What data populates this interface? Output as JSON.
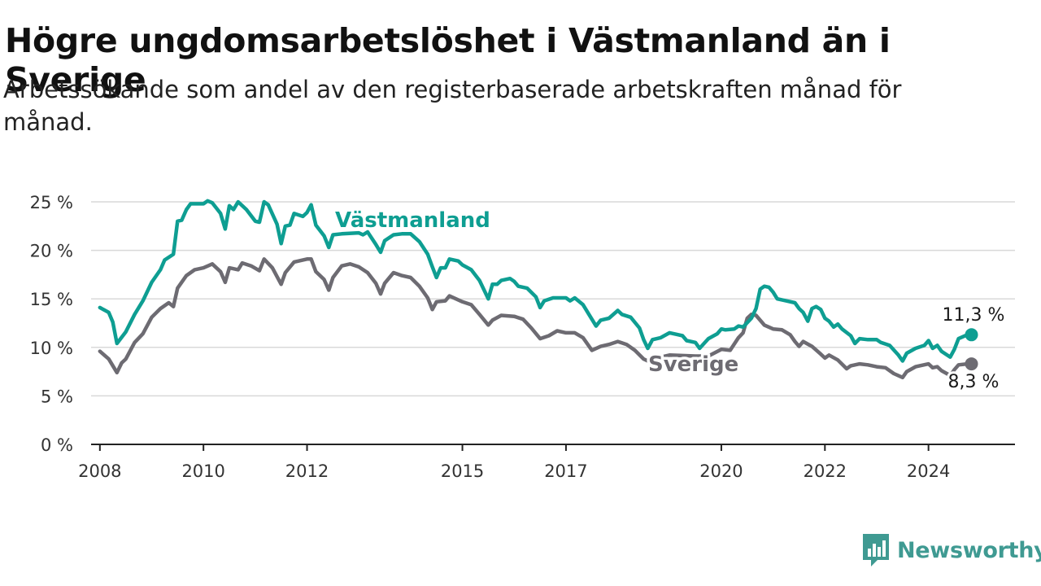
{
  "title": "Högre ungdomsarbetslöshet i Västmanland än i Sverige",
  "subtitle": "Arbetssökande som andel av den registerbaserade arbetskraften månad för månad.",
  "brand": {
    "name": "Newsworthy",
    "icon": "newsworthy-logo-icon",
    "color": "#3f9a92"
  },
  "chart_data": {
    "type": "line",
    "title": "",
    "xlabel": "",
    "ylabel": "",
    "ylim": [
      0,
      25
    ],
    "xlim": [
      2007.83,
      2025.67
    ],
    "grid": true,
    "y_ticks": [
      0,
      5,
      10,
      15,
      20,
      25
    ],
    "y_tick_labels": [
      "0 %",
      "5 %",
      "10 %",
      "15 %",
      "20 %",
      "25 %"
    ],
    "x_ticks": [
      2008,
      2010,
      2012,
      2015,
      2017,
      2020,
      2022,
      2024
    ],
    "x_tick_labels": [
      "2008",
      "2010",
      "2012",
      "2015",
      "2017",
      "2020",
      "2022",
      "2024"
    ],
    "series": [
      {
        "name": "Västmanland",
        "color": "#0e9e92",
        "end_label": "11,3 %",
        "points": [
          [
            2008.0,
            14.1
          ],
          [
            2008.17,
            13.6
          ],
          [
            2008.25,
            12.6
          ],
          [
            2008.33,
            10.4
          ],
          [
            2008.5,
            11.6
          ],
          [
            2008.67,
            13.4
          ],
          [
            2008.83,
            14.8
          ],
          [
            2009.0,
            16.7
          ],
          [
            2009.17,
            18.0
          ],
          [
            2009.25,
            19.0
          ],
          [
            2009.42,
            19.6
          ],
          [
            2009.5,
            23.0
          ],
          [
            2009.58,
            23.1
          ],
          [
            2009.67,
            24.2
          ],
          [
            2009.75,
            24.8
          ],
          [
            2010.0,
            24.8
          ],
          [
            2010.08,
            25.1
          ],
          [
            2010.17,
            24.9
          ],
          [
            2010.33,
            23.8
          ],
          [
            2010.42,
            22.2
          ],
          [
            2010.5,
            24.6
          ],
          [
            2010.58,
            24.2
          ],
          [
            2010.67,
            25.0
          ],
          [
            2010.83,
            24.2
          ],
          [
            2011.0,
            23.0
          ],
          [
            2011.08,
            22.9
          ],
          [
            2011.17,
            25.0
          ],
          [
            2011.25,
            24.7
          ],
          [
            2011.42,
            22.7
          ],
          [
            2011.5,
            20.7
          ],
          [
            2011.58,
            22.5
          ],
          [
            2011.67,
            22.6
          ],
          [
            2011.75,
            23.8
          ],
          [
            2011.92,
            23.5
          ],
          [
            2012.0,
            23.9
          ],
          [
            2012.08,
            24.7
          ],
          [
            2012.17,
            22.6
          ],
          [
            2012.33,
            21.5
          ],
          [
            2012.42,
            20.3
          ],
          [
            2012.5,
            21.6
          ],
          [
            2012.67,
            21.7
          ],
          [
            2013.0,
            21.8
          ],
          [
            2013.08,
            21.6
          ],
          [
            2013.17,
            21.9
          ],
          [
            2013.33,
            20.6
          ],
          [
            2013.42,
            19.8
          ],
          [
            2013.5,
            21.0
          ],
          [
            2013.67,
            21.6
          ],
          [
            2013.83,
            21.7
          ],
          [
            2014.0,
            21.7
          ],
          [
            2014.17,
            20.9
          ],
          [
            2014.33,
            19.6
          ],
          [
            2014.42,
            18.3
          ],
          [
            2014.5,
            17.2
          ],
          [
            2014.58,
            18.2
          ],
          [
            2014.67,
            18.2
          ],
          [
            2014.75,
            19.1
          ],
          [
            2014.92,
            18.9
          ],
          [
            2015.0,
            18.5
          ],
          [
            2015.17,
            18.0
          ],
          [
            2015.33,
            16.9
          ],
          [
            2015.5,
            15.0
          ],
          [
            2015.58,
            16.5
          ],
          [
            2015.67,
            16.5
          ],
          [
            2015.75,
            16.9
          ],
          [
            2015.92,
            17.1
          ],
          [
            2016.0,
            16.8
          ],
          [
            2016.08,
            16.3
          ],
          [
            2016.25,
            16.1
          ],
          [
            2016.42,
            15.2
          ],
          [
            2016.5,
            14.1
          ],
          [
            2016.58,
            14.8
          ],
          [
            2016.75,
            15.1
          ],
          [
            2017.0,
            15.1
          ],
          [
            2017.08,
            14.8
          ],
          [
            2017.17,
            15.1
          ],
          [
            2017.33,
            14.4
          ],
          [
            2017.42,
            13.6
          ],
          [
            2017.58,
            12.2
          ],
          [
            2017.67,
            12.8
          ],
          [
            2017.83,
            13.0
          ],
          [
            2018.0,
            13.8
          ],
          [
            2018.08,
            13.4
          ],
          [
            2018.25,
            13.1
          ],
          [
            2018.42,
            12.0
          ],
          [
            2018.5,
            10.8
          ],
          [
            2018.58,
            9.9
          ],
          [
            2018.67,
            10.8
          ],
          [
            2018.83,
            11.0
          ],
          [
            2019.0,
            11.5
          ],
          [
            2019.17,
            11.3
          ],
          [
            2019.25,
            11.2
          ],
          [
            2019.33,
            10.7
          ],
          [
            2019.5,
            10.5
          ],
          [
            2019.58,
            9.9
          ],
          [
            2019.75,
            10.9
          ],
          [
            2019.92,
            11.4
          ],
          [
            2020.0,
            11.9
          ],
          [
            2020.08,
            11.8
          ],
          [
            2020.25,
            11.9
          ],
          [
            2020.33,
            12.2
          ],
          [
            2020.42,
            12.1
          ],
          [
            2020.58,
            13.0
          ],
          [
            2020.67,
            14.0
          ],
          [
            2020.75,
            16.0
          ],
          [
            2020.83,
            16.3
          ],
          [
            2020.92,
            16.2
          ],
          [
            2021.0,
            15.7
          ],
          [
            2021.08,
            15.0
          ],
          [
            2021.25,
            14.8
          ],
          [
            2021.42,
            14.6
          ],
          [
            2021.5,
            14.0
          ],
          [
            2021.58,
            13.6
          ],
          [
            2021.67,
            12.7
          ],
          [
            2021.75,
            14.0
          ],
          [
            2021.83,
            14.2
          ],
          [
            2021.92,
            13.9
          ],
          [
            2022.0,
            13.0
          ],
          [
            2022.08,
            12.7
          ],
          [
            2022.17,
            12.1
          ],
          [
            2022.25,
            12.4
          ],
          [
            2022.33,
            11.9
          ],
          [
            2022.5,
            11.2
          ],
          [
            2022.58,
            10.4
          ],
          [
            2022.67,
            10.9
          ],
          [
            2022.83,
            10.8
          ],
          [
            2023.0,
            10.8
          ],
          [
            2023.08,
            10.5
          ],
          [
            2023.25,
            10.2
          ],
          [
            2023.42,
            9.2
          ],
          [
            2023.5,
            8.6
          ],
          [
            2023.58,
            9.4
          ],
          [
            2023.75,
            9.9
          ],
          [
            2023.92,
            10.2
          ],
          [
            2024.0,
            10.7
          ],
          [
            2024.08,
            9.9
          ],
          [
            2024.17,
            10.2
          ],
          [
            2024.25,
            9.6
          ],
          [
            2024.42,
            9.0
          ],
          [
            2024.5,
            9.8
          ],
          [
            2024.58,
            10.9
          ],
          [
            2024.75,
            11.3
          ],
          [
            2024.83,
            11.3
          ]
        ]
      },
      {
        "name": "Sverige",
        "color": "#6d6b72",
        "end_label": "8,3 %",
        "points": [
          [
            2008.0,
            9.6
          ],
          [
            2008.17,
            8.8
          ],
          [
            2008.33,
            7.4
          ],
          [
            2008.42,
            8.4
          ],
          [
            2008.5,
            8.8
          ],
          [
            2008.67,
            10.5
          ],
          [
            2008.83,
            11.4
          ],
          [
            2009.0,
            13.1
          ],
          [
            2009.17,
            14.0
          ],
          [
            2009.33,
            14.6
          ],
          [
            2009.42,
            14.2
          ],
          [
            2009.5,
            16.1
          ],
          [
            2009.67,
            17.4
          ],
          [
            2009.83,
            18.0
          ],
          [
            2010.0,
            18.2
          ],
          [
            2010.17,
            18.6
          ],
          [
            2010.33,
            17.8
          ],
          [
            2010.42,
            16.7
          ],
          [
            2010.5,
            18.2
          ],
          [
            2010.67,
            18.0
          ],
          [
            2010.75,
            18.7
          ],
          [
            2010.92,
            18.4
          ],
          [
            2011.08,
            17.9
          ],
          [
            2011.17,
            19.1
          ],
          [
            2011.33,
            18.2
          ],
          [
            2011.5,
            16.5
          ],
          [
            2011.58,
            17.7
          ],
          [
            2011.75,
            18.8
          ],
          [
            2012.0,
            19.1
          ],
          [
            2012.08,
            19.1
          ],
          [
            2012.17,
            17.8
          ],
          [
            2012.33,
            17.0
          ],
          [
            2012.42,
            15.9
          ],
          [
            2012.5,
            17.2
          ],
          [
            2012.67,
            18.4
          ],
          [
            2012.83,
            18.6
          ],
          [
            2013.0,
            18.3
          ],
          [
            2013.17,
            17.7
          ],
          [
            2013.33,
            16.6
          ],
          [
            2013.42,
            15.5
          ],
          [
            2013.5,
            16.6
          ],
          [
            2013.67,
            17.7
          ],
          [
            2013.83,
            17.4
          ],
          [
            2014.0,
            17.2
          ],
          [
            2014.17,
            16.3
          ],
          [
            2014.33,
            15.1
          ],
          [
            2014.42,
            13.9
          ],
          [
            2014.5,
            14.7
          ],
          [
            2014.67,
            14.8
          ],
          [
            2014.75,
            15.3
          ],
          [
            2015.0,
            14.7
          ],
          [
            2015.17,
            14.4
          ],
          [
            2015.33,
            13.4
          ],
          [
            2015.5,
            12.3
          ],
          [
            2015.58,
            12.8
          ],
          [
            2015.75,
            13.3
          ],
          [
            2016.0,
            13.2
          ],
          [
            2016.17,
            12.9
          ],
          [
            2016.33,
            12.0
          ],
          [
            2016.5,
            10.9
          ],
          [
            2016.67,
            11.2
          ],
          [
            2016.83,
            11.7
          ],
          [
            2017.0,
            11.5
          ],
          [
            2017.17,
            11.5
          ],
          [
            2017.33,
            11.0
          ],
          [
            2017.5,
            9.7
          ],
          [
            2017.67,
            10.1
          ],
          [
            2017.83,
            10.3
          ],
          [
            2018.0,
            10.6
          ],
          [
            2018.17,
            10.3
          ],
          [
            2018.33,
            9.7
          ],
          [
            2018.5,
            8.8
          ],
          [
            2018.58,
            8.6
          ],
          [
            2018.75,
            8.9
          ],
          [
            2019.0,
            9.2
          ],
          [
            2019.5,
            9.1
          ],
          [
            2019.75,
            9.1
          ],
          [
            2020.0,
            9.8
          ],
          [
            2020.17,
            9.7
          ],
          [
            2020.33,
            11.0
          ],
          [
            2020.42,
            11.5
          ],
          [
            2020.5,
            13.0
          ],
          [
            2020.58,
            13.4
          ],
          [
            2020.67,
            13.3
          ],
          [
            2020.83,
            12.3
          ],
          [
            2021.0,
            11.9
          ],
          [
            2021.17,
            11.8
          ],
          [
            2021.33,
            11.3
          ],
          [
            2021.42,
            10.6
          ],
          [
            2021.5,
            10.1
          ],
          [
            2021.58,
            10.6
          ],
          [
            2021.75,
            10.1
          ],
          [
            2021.92,
            9.3
          ],
          [
            2022.0,
            8.9
          ],
          [
            2022.08,
            9.2
          ],
          [
            2022.25,
            8.7
          ],
          [
            2022.42,
            7.8
          ],
          [
            2022.5,
            8.1
          ],
          [
            2022.67,
            8.3
          ],
          [
            2022.83,
            8.2
          ],
          [
            2023.0,
            8.0
          ],
          [
            2023.17,
            7.9
          ],
          [
            2023.33,
            7.3
          ],
          [
            2023.5,
            6.9
          ],
          [
            2023.58,
            7.5
          ],
          [
            2023.75,
            8.0
          ],
          [
            2024.0,
            8.3
          ],
          [
            2024.08,
            7.9
          ],
          [
            2024.17,
            8.0
          ],
          [
            2024.25,
            7.6
          ],
          [
            2024.42,
            7.1
          ],
          [
            2024.5,
            7.7
          ],
          [
            2024.58,
            8.2
          ],
          [
            2024.75,
            8.3
          ],
          [
            2024.83,
            8.3
          ]
        ]
      }
    ]
  }
}
